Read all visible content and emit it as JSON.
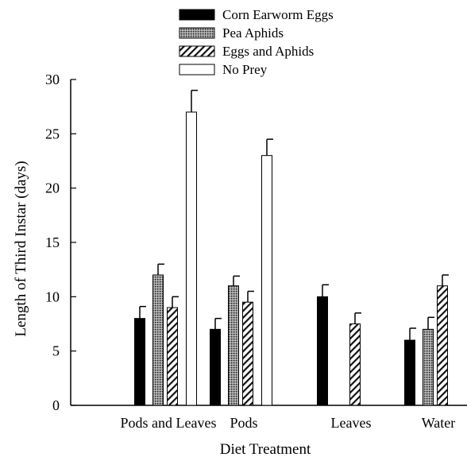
{
  "chart_data": {
    "type": "bar",
    "xlabel": "Diet Treatment",
    "ylabel": "Length of Third Instar (days)",
    "ylim": [
      0,
      30
    ],
    "yticks": [
      0,
      5,
      10,
      15,
      20,
      25,
      30
    ],
    "categories": [
      "Pods and Leaves",
      "Pods",
      "Leaves",
      "Water"
    ],
    "legend_position": "top-center",
    "series": [
      {
        "name": "Corn Earworm Eggs",
        "fill": "solid-black",
        "values": [
          8,
          7,
          10,
          6
        ],
        "errors": [
          1.1,
          1.0,
          1.1,
          1.1
        ]
      },
      {
        "name": "Pea Aphids",
        "fill": "dotted-gray",
        "values": [
          12,
          11,
          null,
          7
        ],
        "errors": [
          1.0,
          0.9,
          null,
          1.1
        ]
      },
      {
        "name": "Eggs and Aphids",
        "fill": "diagonal-hatch",
        "values": [
          9,
          9.5,
          7.5,
          11
        ],
        "errors": [
          1.0,
          1.0,
          1.0,
          1.0
        ]
      },
      {
        "name": "No Prey",
        "fill": "white",
        "values": [
          27,
          23,
          null,
          null
        ],
        "errors": [
          2.0,
          1.5,
          null,
          null
        ]
      }
    ]
  }
}
